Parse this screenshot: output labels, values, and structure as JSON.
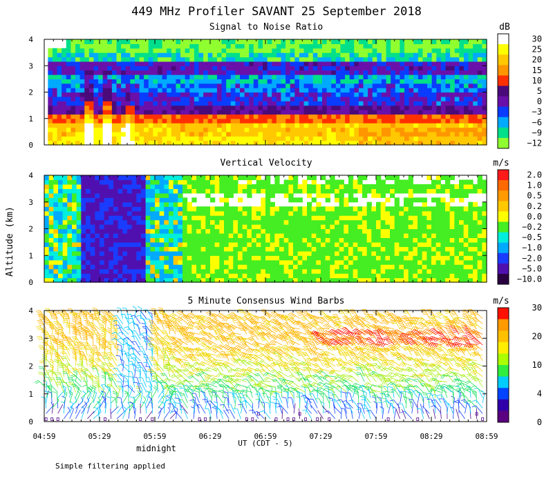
{
  "figure": {
    "title": "449 MHz Profiler SAVANT 25 September 2018",
    "ylabel": "Altitude (km)",
    "xlabel": "UT  (CDT - 5)",
    "midnight_label": "midnight",
    "footnote": "Simple filtering applied"
  },
  "colors": {
    "background": "#ffffff",
    "axis": "#000000"
  },
  "chart_data": [
    {
      "type": "heatmap",
      "title": "Signal to Noise Ratio",
      "unit": "dB",
      "xlim": [
        0,
        240
      ],
      "ylim": [
        0,
        4
      ],
      "yticks": [
        "0",
        "1",
        "2",
        "3",
        "4"
      ],
      "xticks": [
        "04:59",
        "05:29",
        "05:59",
        "06:29",
        "06:59",
        "07:29",
        "07:59",
        "08:29",
        "08:59"
      ],
      "colorbar": {
        "labels": [
          "30",
          "25",
          "20",
          "15",
          "10",
          "5",
          "0",
          "−3",
          "−6",
          "−9",
          "−12"
        ],
        "colors": [
          "#ffffff",
          "#ffff00",
          "#ffc800",
          "#ff9600",
          "#ff3000",
          "#4a0a7a",
          "#6a10aa",
          "#0a3cff",
          "#00aaff",
          "#00e08a",
          "#90ff30"
        ]
      },
      "profile": {
        "altitude_km": [
          0.2,
          0.5,
          0.9,
          1.3,
          1.7,
          2.1,
          2.5,
          2.9,
          3.3,
          3.7
        ],
        "snr_db_typical": [
          25,
          22,
          12,
          3,
          -1,
          -4,
          -6,
          -2,
          -8,
          -11
        ]
      }
    },
    {
      "type": "heatmap",
      "title": "Vertical Velocity",
      "unit": "m/s",
      "xlim": [
        0,
        240
      ],
      "ylim": [
        0,
        4
      ],
      "yticks": [
        "0",
        "1",
        "2",
        "3",
        "4"
      ],
      "colorbar": {
        "labels": [
          "2.0",
          "1.0",
          "0.5",
          "0.2",
          "0.0",
          "−0.2",
          "−0.5",
          "−1.0",
          "−2.0",
          "−5.0",
          "−10.0"
        ],
        "colors": [
          "#ff1a1a",
          "#ff6a00",
          "#ff9a00",
          "#ffc800",
          "#ffff00",
          "#44ee22",
          "#00eedd",
          "#00aaff",
          "#1a3cff",
          "#5010b0",
          "#2a0040"
        ]
      },
      "profile": {
        "time_min": [
          0,
          20,
          50,
          70,
          120,
          180,
          240
        ],
        "vv_ms_typical": [
          -0.3,
          -0.8,
          -4,
          -0.3,
          -0.15,
          -0.12,
          -0.1
        ]
      }
    },
    {
      "type": "wind_barbs",
      "title": "5 Minute Consensus Wind Barbs",
      "unit": "m/s",
      "xlim": [
        0,
        240
      ],
      "ylim": [
        0,
        4
      ],
      "yticks": [
        "0",
        "1",
        "2",
        "3",
        "4"
      ],
      "colorbar": {
        "labels": [
          "30",
          "20",
          "10",
          "4",
          "0"
        ],
        "colors": [
          "#ff1000",
          "#ff9a00",
          "#ffc000",
          "#ffee00",
          "#aaff00",
          "#30ee40",
          "#00ccff",
          "#0044ff",
          "#3000aa",
          "#5a0080"
        ]
      },
      "profile": {
        "altitude_km": [
          0.2,
          1.0,
          2.0,
          3.0,
          3.8
        ],
        "speed_ms_typical": [
          2,
          5,
          12,
          22,
          18
        ]
      }
    }
  ]
}
